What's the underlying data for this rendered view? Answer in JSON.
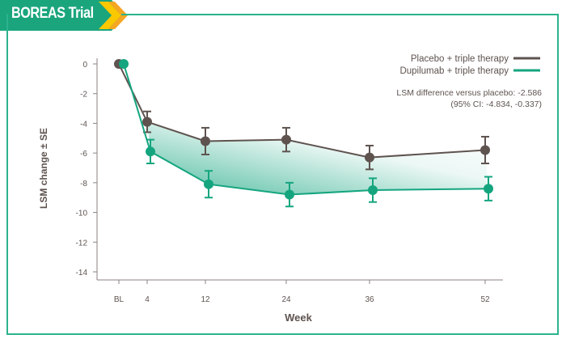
{
  "header": {
    "title": "BOREAS Trial"
  },
  "chart_data": {
    "type": "line",
    "title": "",
    "xlabel": "Week",
    "ylabel": "LSM change ± SE",
    "categories": [
      "BL",
      "4",
      "12",
      "24",
      "36",
      "52"
    ],
    "x": [
      0,
      4,
      12,
      24,
      36,
      52
    ],
    "ylim": [
      -14,
      0
    ],
    "yticks": [
      "0",
      "-2",
      "-4",
      "-6",
      "-8",
      "-10",
      "-12",
      "-14"
    ],
    "grid": false,
    "legend_position": "top-right",
    "series": [
      {
        "name": "Placebo + triple therapy",
        "color": "#5e534f",
        "values": [
          0,
          -3.9,
          -5.2,
          -5.1,
          -6.3,
          -5.8
        ],
        "se": [
          0,
          0.7,
          0.9,
          0.8,
          0.8,
          0.9
        ]
      },
      {
        "name": "Dupilumab + triple therapy",
        "color": "#14a57f",
        "values": [
          0,
          -5.9,
          -8.1,
          -8.8,
          -8.5,
          -8.4
        ],
        "se": [
          0,
          0.8,
          0.9,
          0.8,
          0.8,
          0.8
        ]
      }
    ],
    "annotation": {
      "line1": "LSM difference versus placebo: -2.586",
      "line2": "(95% CI: -4.834, -0.337)"
    }
  }
}
